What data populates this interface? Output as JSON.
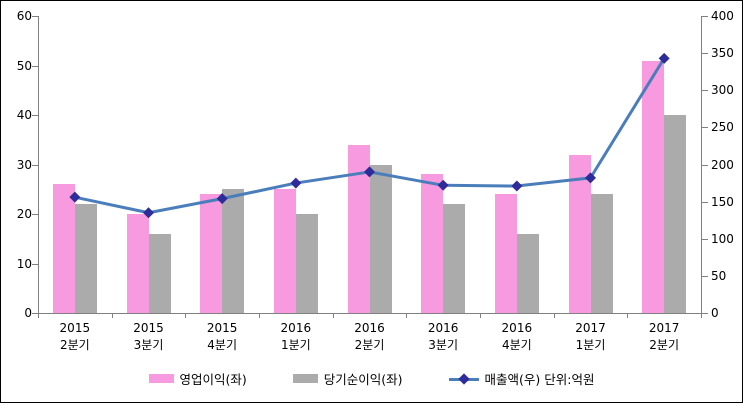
{
  "chart_data": {
    "type": "combo",
    "categories": [
      {
        "line1": "2015",
        "line2": "2분기"
      },
      {
        "line1": "2015",
        "line2": "3분기"
      },
      {
        "line1": "2015",
        "line2": "4분기"
      },
      {
        "line1": "2016",
        "line2": "1분기"
      },
      {
        "line1": "2016",
        "line2": "2분기"
      },
      {
        "line1": "2016",
        "line2": "3분기"
      },
      {
        "line1": "2016",
        "line2": "4분기"
      },
      {
        "line1": "2017",
        "line2": "1분기"
      },
      {
        "line1": "2017",
        "line2": "2분기"
      }
    ],
    "series": [
      {
        "name": "영업이익(좌)",
        "type": "bar",
        "axis": "left",
        "color": "#F79ADF",
        "values": [
          26,
          20,
          24,
          25,
          34,
          28,
          24,
          32,
          51
        ]
      },
      {
        "name": "당기순이익(좌)",
        "type": "bar",
        "axis": "left",
        "color": "#ABABAB",
        "values": [
          22,
          16,
          25,
          20,
          30,
          22,
          16,
          24,
          40
        ]
      },
      {
        "name": "매출액(우)",
        "type": "line",
        "axis": "right",
        "color": "#4A7EBB",
        "marker_color": "#2E2C9A",
        "values": [
          156,
          135,
          154,
          175,
          190,
          172,
          171,
          182,
          343
        ]
      }
    ],
    "left_axis": {
      "min": 0,
      "max": 60,
      "ticks": [
        "0",
        "10",
        "20",
        "30",
        "40",
        "50",
        "60"
      ]
    },
    "right_axis": {
      "min": 0,
      "max": 400,
      "ticks": [
        "0",
        "50",
        "100",
        "150",
        "200",
        "250",
        "300",
        "350",
        "400"
      ]
    },
    "unit_label": "단위:억원",
    "legend": [
      "영업이익(좌)",
      "당기순이익(좌)",
      "매출액(우) 단위:억원"
    ],
    "legend_position": "bottom",
    "grid": false,
    "axis_color": "#808080",
    "border_color": "#000000"
  }
}
